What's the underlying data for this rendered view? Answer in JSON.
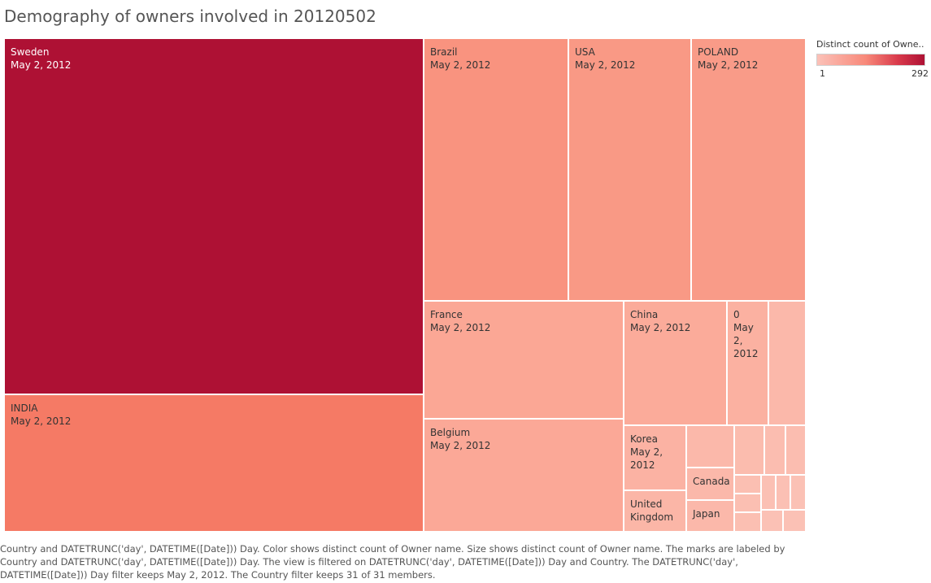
{
  "title": "Demography of owners involved in 20120502",
  "legend": {
    "title": "Distinct count of Owne..",
    "min": "1",
    "max": "292",
    "min_color": "#fbc1b8",
    "max_color": "#ae1134"
  },
  "chart_data": {
    "type": "treemap",
    "measure": "Distinct count of Owner name",
    "tiles": [
      {
        "label": "Sweden\nMay 2, 2012",
        "color": "#ae1134",
        "text_color": "light"
      },
      {
        "label": "INDIA\nMay 2, 2012",
        "color": "#f57a65",
        "text_color": "dark"
      },
      {
        "label": "Brazil\nMay 2, 2012",
        "color": "#f9937f",
        "text_color": "dark"
      },
      {
        "label": "USA\nMay 2, 2012",
        "color": "#f99985",
        "text_color": "dark"
      },
      {
        "label": "POLAND\nMay 2, 2012",
        "color": "#f99b88",
        "text_color": "dark"
      },
      {
        "label": "France\nMay 2, 2012",
        "color": "#fba795",
        "text_color": "dark"
      },
      {
        "label": "China\nMay 2, 2012",
        "color": "#fbab9a",
        "text_color": "dark"
      },
      {
        "label": "0\nMay\n2,\n2012",
        "color": "#fbb1a1",
        "text_color": "dark"
      },
      {
        "label": "",
        "color": "#fbb8aa",
        "text_color": "dark"
      },
      {
        "label": "Belgium\nMay 2, 2012",
        "color": "#fba897",
        "text_color": "dark"
      },
      {
        "label": "Korea\nMay 2,\n2012",
        "color": "#fbb2a3",
        "text_color": "dark"
      },
      {
        "label": "United\nKingdom",
        "color": "#fbb6a7",
        "text_color": "dark"
      },
      {
        "label": "Canada",
        "color": "#fbb8aa",
        "text_color": "dark"
      },
      {
        "label": "Japan",
        "color": "#fbb8aa",
        "text_color": "dark"
      },
      {
        "label": "",
        "color": "#fbb8aa",
        "text_color": "dark"
      },
      {
        "label": "",
        "color": "#fbbcae",
        "text_color": "dark"
      },
      {
        "label": "",
        "color": "#fbbdb0",
        "text_color": "dark"
      },
      {
        "label": "",
        "color": "#fbbdb0",
        "text_color": "dark"
      },
      {
        "label": "",
        "color": "#fbbfb2",
        "text_color": "dark"
      },
      {
        "label": "",
        "color": "#fbbfb2",
        "text_color": "dark"
      },
      {
        "label": "",
        "color": "#fbbfb2",
        "text_color": "dark"
      },
      {
        "label": "",
        "color": "#fbc0b4",
        "text_color": "dark"
      },
      {
        "label": "",
        "color": "#fbc0b4",
        "text_color": "dark"
      },
      {
        "label": "",
        "color": "#fbc1b5",
        "text_color": "dark"
      },
      {
        "label": "",
        "color": "#fbc1b5",
        "text_color": "dark"
      },
      {
        "label": "",
        "color": "#fbc1b5",
        "text_color": "dark"
      },
      {
        "label": "",
        "color": "#fbc1b5",
        "text_color": "dark"
      },
      {
        "label": "",
        "color": "#fbc1b5",
        "text_color": "dark"
      }
    ]
  },
  "caption": "Country and DATETRUNC('day', DATETIME([Date])) Day.  Color shows distinct count of Owner name.  Size shows distinct count of Owner name.  The marks are labeled by Country and DATETRUNC('day', DATETIME([Date])) Day. The view is filtered on DATETRUNC('day', DATETIME([Date])) Day and Country. The DATETRUNC('day', DATETIME([Date])) Day filter keeps May 2, 2012. The Country filter keeps 31 of 31 members."
}
